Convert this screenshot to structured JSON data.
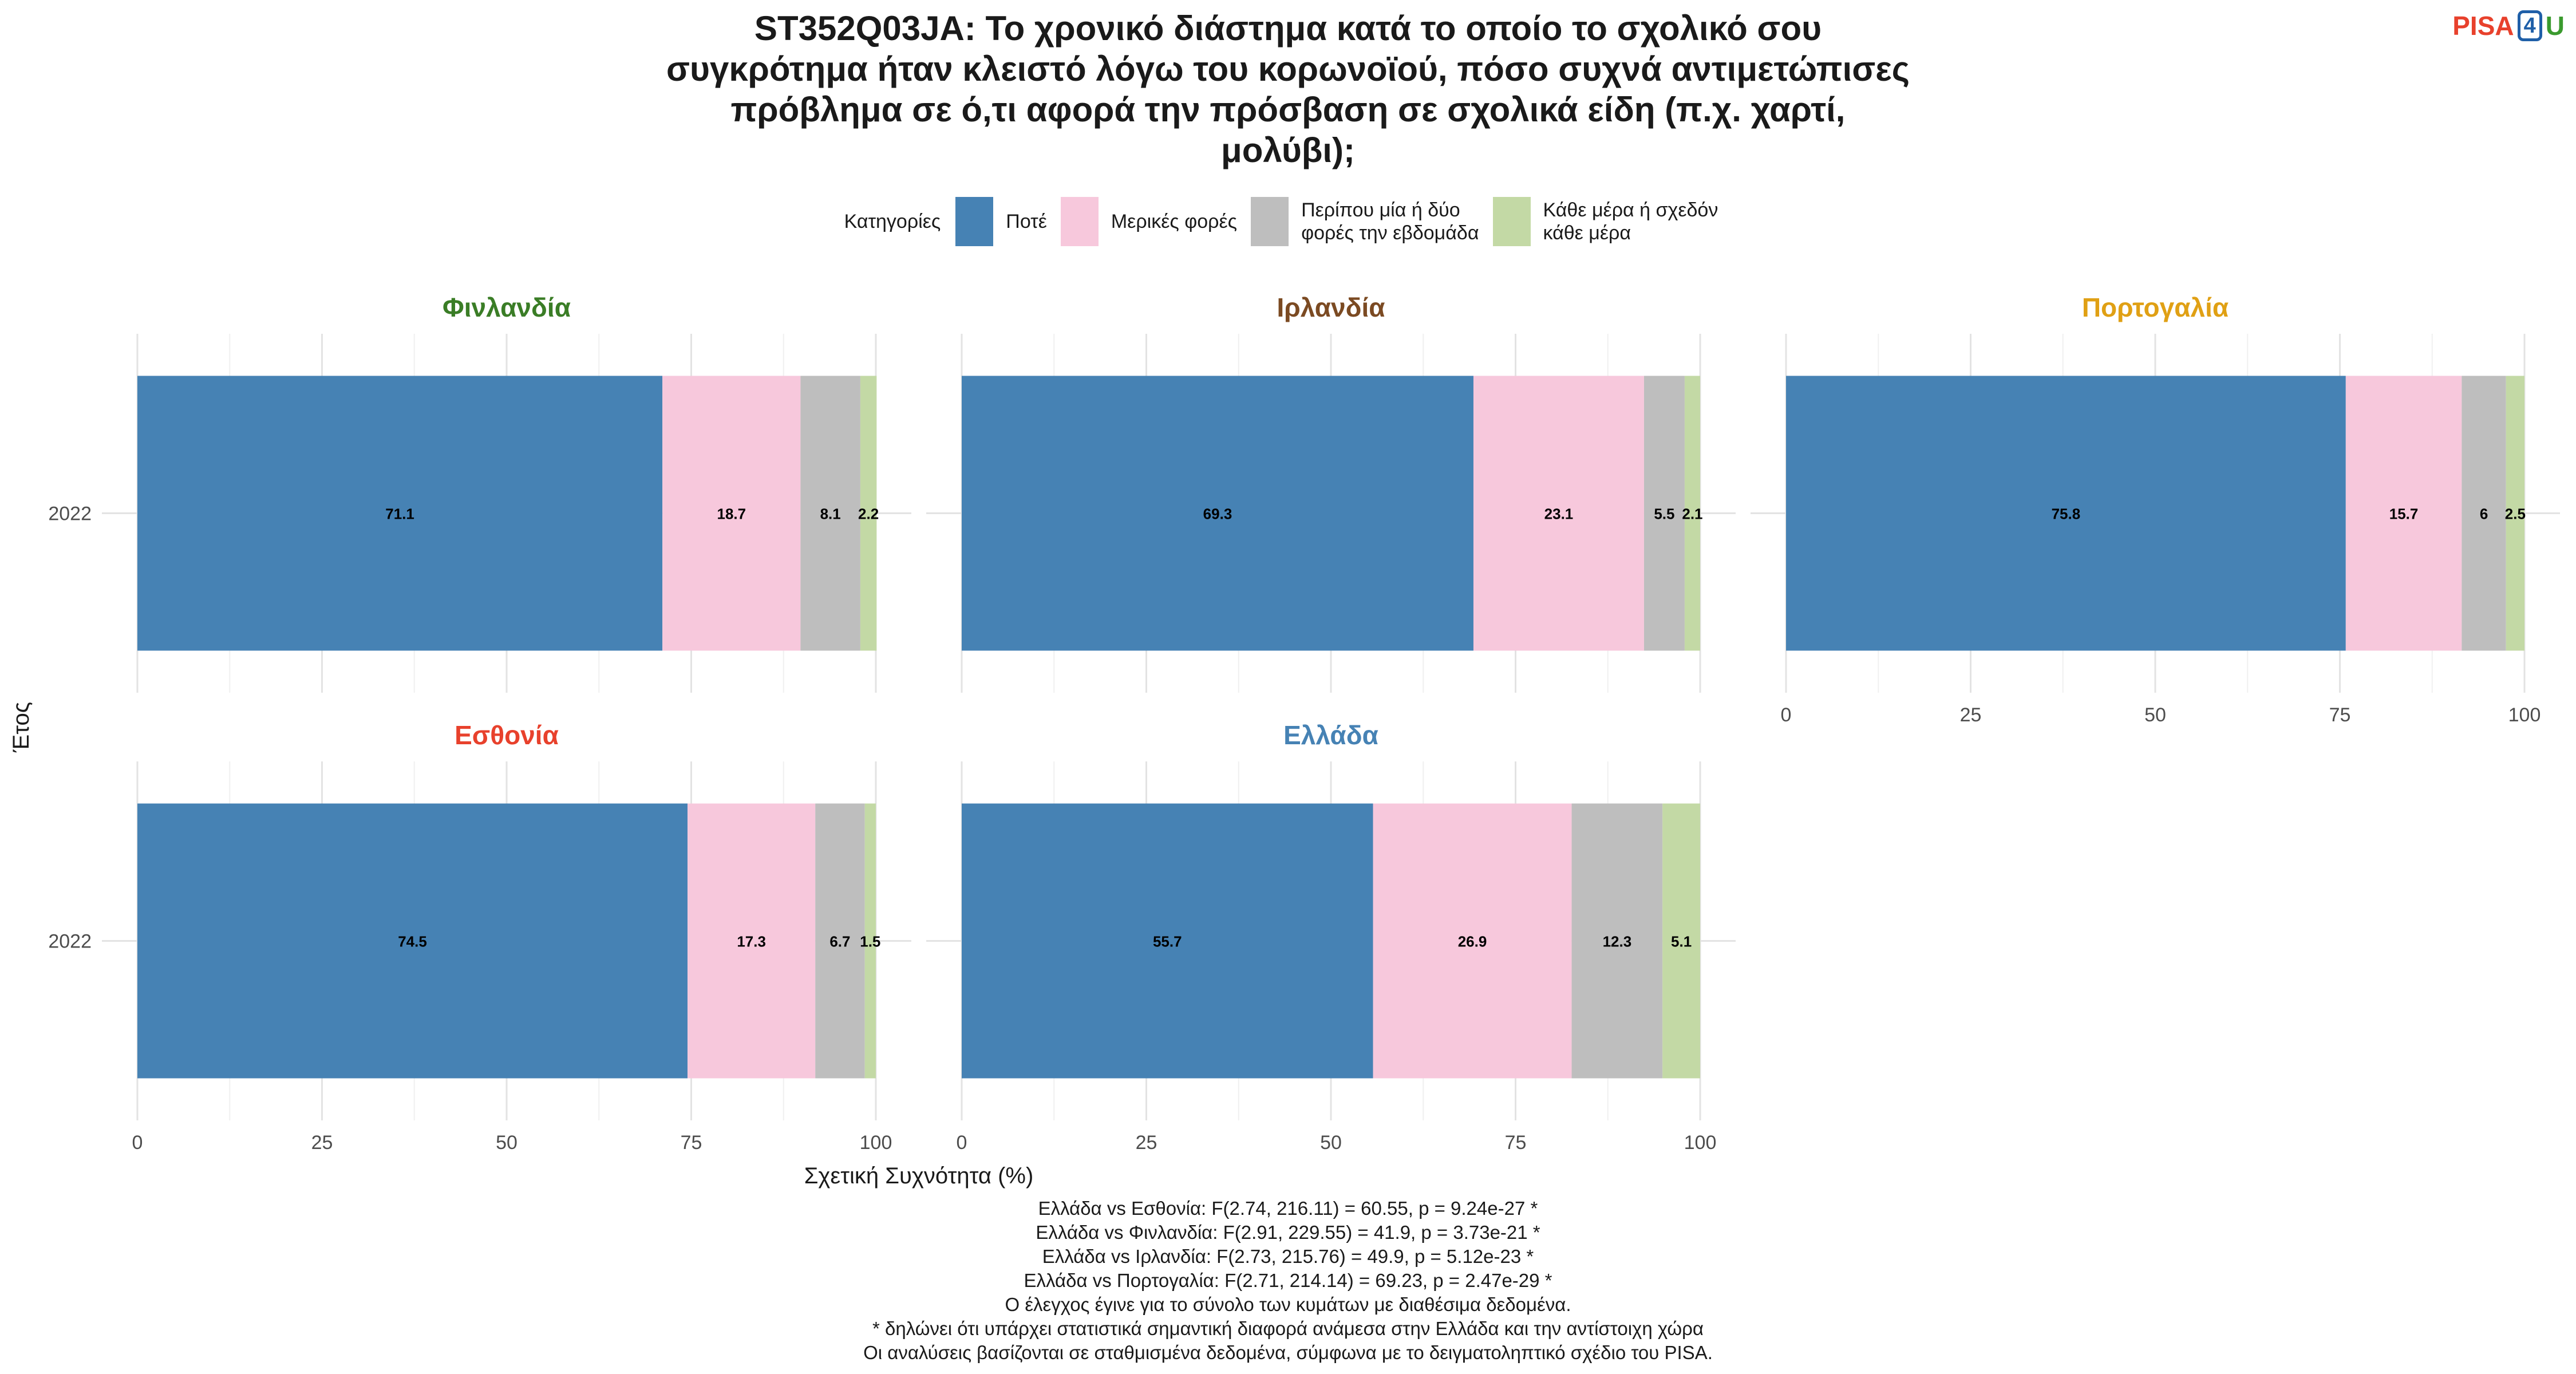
{
  "title": "ST352Q03JA: Το χρονικό διάστημα κατά το οποίο το σχολικό σου συγκρότημα ήταν κλειστό λόγω του κορωνοϊού, πόσο συχνά αντιμετώπισες πρόβλημα σε ό,τι αφορά την πρόσβαση σε σχολικά είδη (π.χ. χαρτί, μολύβι);",
  "title_lines": [
    "ST352Q03JA: Το χρονικό διάστημα κατά το οποίο το σχολικό σου",
    "συγκρότημα ήταν κλειστό λόγω του κορωνοϊού, πόσο συχνά αντιμετώπισες",
    "πρόβλημα σε ό,τι αφορά την πρόσβαση σε σχολικά είδη (π.χ. χαρτί,",
    "μολύβι);"
  ],
  "logo": {
    "part1": "PISA",
    "part2": "4",
    "part3": "U"
  },
  "legend": {
    "title": "Κατηγορίες",
    "items": [
      {
        "label_lines": [
          "Ποτέ"
        ],
        "color": "#4682b4"
      },
      {
        "label_lines": [
          "Μερικές φορές"
        ],
        "color": "#f7c8dc"
      },
      {
        "label_lines": [
          "Περίπου μία ή δύο",
          "φορές την εβδομάδα"
        ],
        "color": "#bebebe"
      },
      {
        "label_lines": [
          "Κάθε μέρα ή σχεδόν",
          "κάθε μέρα"
        ],
        "color": "#c3d9a5"
      }
    ]
  },
  "chart_data": {
    "type": "bar",
    "orientation": "horizontal",
    "stacked": true,
    "xlabel": "Σχετική Συχνότητα (%)",
    "ylabel": "Έτος",
    "xlim": [
      0,
      100
    ],
    "xticks": [
      0,
      25,
      50,
      75,
      100
    ],
    "categories": [
      "2022"
    ],
    "series_names": [
      "Ποτέ",
      "Μερικές φορές",
      "Περίπου μία ή δύο φορές την εβδομάδα",
      "Κάθε μέρα ή σχεδόν κάθε μέρα"
    ],
    "series_colors": [
      "#4682b4",
      "#f7c8dc",
      "#bebebe",
      "#c3d9a5"
    ],
    "panels": [
      {
        "name": "Φινλανδία",
        "title_color": "#3a7d26",
        "year": "2022",
        "values": [
          71.1,
          18.7,
          8.1,
          2.2
        ],
        "labels": [
          "71.1",
          "18.7",
          "8.1",
          "2.2"
        ]
      },
      {
        "name": "Ιρλανδία",
        "title_color": "#7b4a22",
        "year": "2022",
        "values": [
          69.3,
          23.1,
          5.5,
          2.1
        ],
        "labels": [
          "69.3",
          "23.1",
          "5.5",
          "2.1"
        ]
      },
      {
        "name": "Πορτογαλία",
        "title_color": "#e0a014",
        "year": "2022",
        "values": [
          75.8,
          15.7,
          6,
          2.5
        ],
        "labels": [
          "75.8",
          "15.7",
          "6",
          "2.5"
        ]
      },
      {
        "name": "Εσθονία",
        "title_color": "#e8412c",
        "year": "2022",
        "values": [
          74.5,
          17.3,
          6.7,
          1.5
        ],
        "labels": [
          "74.5",
          "17.3",
          "6.7",
          "1.5"
        ]
      },
      {
        "name": "Ελλάδα",
        "title_color": "#4682b4",
        "year": "2022",
        "values": [
          55.7,
          26.9,
          12.3,
          5.1
        ],
        "labels": [
          "55.7",
          "26.9",
          "12.3",
          "5.1"
        ]
      }
    ]
  },
  "footnotes": [
    "Ελλάδα vs Εσθονία: F(2.74, 216.11) = 60.55, p = 9.24e-27 *",
    "Ελλάδα vs Φινλανδία: F(2.91, 229.55) = 41.9, p = 3.73e-21 *",
    "Ελλάδα vs Ιρλανδία: F(2.73, 215.76) = 49.9, p = 5.12e-23 *",
    "Ελλάδα vs Πορτογαλία: F(2.71, 214.14) = 69.23, p = 2.47e-29 *",
    "Ο έλεγχος έγινε για το σύνολο των κυμάτων με διαθέσιμα δεδομένα.",
    "* δηλώνει ότι υπάρχει στατιστικά σημαντική διαφορά ανάμεσα στην Ελλάδα και την αντίστοιχη χώρα",
    "Οι αναλύσεις βασίζονται σε σταθμισμένα δεδομένα, σύμφωνα με το δειγματοληπτικό σχέδιο του PISA."
  ]
}
